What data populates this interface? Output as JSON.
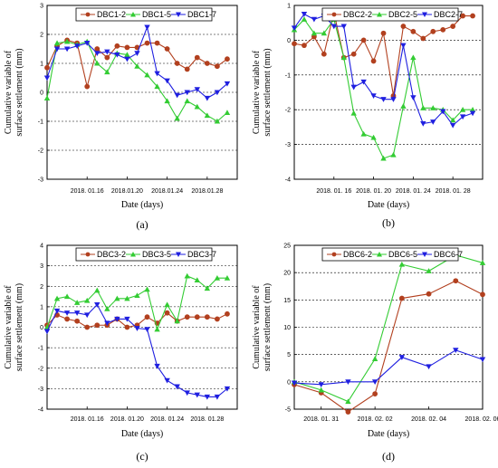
{
  "chart_data": [
    {
      "type": "line",
      "panel_label": "(a)",
      "xlabel": "Date (days)",
      "ylabel": "Cumulative variable of surface settlement (mm)",
      "ylim": [
        -3,
        3
      ],
      "yticks": [
        -3,
        -2,
        -1,
        0,
        1,
        2,
        3
      ],
      "xlim": [
        0,
        19
      ],
      "xticks": [
        {
          "x": 4,
          "label": "2018. 01.16"
        },
        {
          "x": 8,
          "label": "2018.01.20"
        },
        {
          "x": 12,
          "label": "2018.01.24"
        },
        {
          "x": 16,
          "label": "2018.01.28"
        }
      ],
      "grid": "horizontal-dashed",
      "legend": "top",
      "x": [
        0,
        1,
        2,
        3,
        4,
        5,
        6,
        7,
        8,
        9,
        10,
        11,
        12,
        13,
        14,
        15,
        16,
        17,
        18
      ],
      "series": [
        {
          "name": "DBC1-2",
          "color": "#b2401f",
          "marker": "circle",
          "values": [
            0.85,
            1.6,
            1.8,
            1.7,
            0.2,
            1.5,
            1.2,
            1.6,
            1.55,
            1.55,
            1.7,
            1.7,
            1.5,
            1.0,
            0.8,
            1.2,
            1.0,
            0.9,
            1.15
          ]
        },
        {
          "name": "DBC1-5",
          "color": "#33cc33",
          "marker": "triangle-up",
          "values": [
            -0.2,
            1.7,
            1.75,
            1.65,
            1.75,
            1.0,
            0.7,
            1.35,
            1.3,
            0.9,
            0.6,
            0.2,
            -0.3,
            -0.9,
            -0.3,
            -0.5,
            -0.8,
            -1.0,
            -0.7
          ]
        },
        {
          "name": "DBC1-7",
          "color": "#1f1fe0",
          "marker": "triangle-down",
          "values": [
            0.5,
            1.5,
            1.5,
            1.6,
            1.7,
            1.35,
            1.4,
            1.3,
            1.15,
            1.35,
            2.25,
            0.65,
            0.4,
            -0.1,
            0.0,
            0.1,
            -0.2,
            0.0,
            0.3
          ]
        }
      ]
    },
    {
      "type": "line",
      "panel_label": "(b)",
      "xlabel": "Date (days)",
      "ylabel": "Cumulative variable of surface settlement (mm)",
      "ylim": [
        -4,
        1
      ],
      "yticks": [
        -4,
        -3,
        -2,
        -1,
        0,
        1
      ],
      "xlim": [
        0,
        19
      ],
      "xticks": [
        {
          "x": 4,
          "label": "2018. 01. 16"
        },
        {
          "x": 8,
          "label": "2018. 01. 20"
        },
        {
          "x": 12,
          "label": "2018. 01. 24"
        },
        {
          "x": 16,
          "label": "2018. 01. 28"
        }
      ],
      "grid": "horizontal-dashed",
      "legend": "top",
      "x": [
        0,
        1,
        2,
        3,
        4,
        5,
        6,
        7,
        8,
        9,
        10,
        11,
        12,
        13,
        14,
        15,
        16,
        17,
        18
      ],
      "series": [
        {
          "name": "DBC2-2",
          "color": "#b2401f",
          "marker": "circle",
          "values": [
            -0.1,
            -0.15,
            0.1,
            -0.4,
            0.8,
            -0.5,
            -0.4,
            0.0,
            -0.6,
            0.2,
            -1.6,
            0.4,
            0.25,
            0.05,
            0.25,
            0.3,
            0.4,
            0.7,
            0.7
          ]
        },
        {
          "name": "DBC2-5",
          "color": "#33cc33",
          "marker": "triangle-up",
          "values": [
            0.3,
            0.6,
            0.2,
            0.2,
            0.6,
            -0.5,
            -2.1,
            -2.7,
            -2.8,
            -3.4,
            -3.3,
            -1.9,
            -0.5,
            -1.95,
            -1.95,
            -2.0,
            -2.3,
            -2.0,
            -2.0
          ]
        },
        {
          "name": "DBC2-7",
          "color": "#1f1fe0",
          "marker": "triangle-down",
          "values": [
            0.35,
            0.75,
            0.6,
            0.7,
            0.4,
            0.4,
            -1.35,
            -1.2,
            -1.6,
            -1.7,
            -1.7,
            -0.15,
            -1.65,
            -2.4,
            -2.35,
            -2.05,
            -2.45,
            -2.2,
            -2.1
          ]
        }
      ]
    },
    {
      "type": "line",
      "panel_label": "(c)",
      "xlabel": "Date (days)",
      "ylabel": "Cumulative variable of surface settlement (mm)",
      "ylim": [
        -4,
        4
      ],
      "yticks": [
        -4,
        -3,
        -2,
        -1,
        0,
        1,
        2,
        3,
        4
      ],
      "xlim": [
        0,
        19
      ],
      "xticks": [
        {
          "x": 4,
          "label": "2018. 01.16"
        },
        {
          "x": 8,
          "label": "2018. 01.20"
        },
        {
          "x": 12,
          "label": "2018. 01.24"
        },
        {
          "x": 16,
          "label": "2018. 01.28"
        }
      ],
      "grid": "horizontal-dashed",
      "legend": "top",
      "x": [
        0,
        1,
        2,
        3,
        4,
        5,
        6,
        7,
        8,
        9,
        10,
        11,
        12,
        13,
        14,
        15,
        16,
        17,
        18
      ],
      "series": [
        {
          "name": "DBC3-2",
          "color": "#b2401f",
          "marker": "circle",
          "values": [
            0.1,
            0.6,
            0.4,
            0.3,
            0.0,
            0.1,
            0.1,
            0.4,
            0.0,
            0.1,
            0.5,
            0.2,
            0.7,
            0.3,
            0.5,
            0.5,
            0.5,
            0.4,
            0.65
          ]
        },
        {
          "name": "DBC3-5",
          "color": "#33cc33",
          "marker": "triangle-up",
          "values": [
            0.0,
            1.4,
            1.5,
            1.2,
            1.3,
            1.8,
            0.9,
            1.4,
            1.4,
            1.55,
            1.85,
            -0.1,
            1.1,
            0.3,
            2.5,
            2.3,
            1.9,
            2.4,
            2.4
          ]
        },
        {
          "name": "DBC3-7",
          "color": "#1f1fe0",
          "marker": "triangle-down",
          "values": [
            -0.2,
            0.8,
            0.7,
            0.7,
            0.6,
            1.1,
            0.2,
            0.4,
            0.4,
            -0.05,
            -0.1,
            -1.9,
            -2.6,
            -2.9,
            -3.2,
            -3.3,
            -3.4,
            -3.4,
            -3.0
          ]
        }
      ]
    },
    {
      "type": "line",
      "panel_label": "(d)",
      "xlabel": "Date (days)",
      "ylabel": "Cumulative variable of surface settlement (mm)",
      "ylim": [
        -5,
        25
      ],
      "yticks": [
        -5,
        0,
        5,
        10,
        15,
        20,
        25
      ],
      "xlim": [
        0,
        10.5
      ],
      "xticks": [
        {
          "x": 1.5,
          "label": "2018. 01. 31"
        },
        {
          "x": 4.5,
          "label": "2018. 02. 02"
        },
        {
          "x": 7.5,
          "label": "2018. 02. 04"
        },
        {
          "x": 10.5,
          "label": "2018. 02. 06"
        }
      ],
      "grid": "horizontal-dashed",
      "legend": "top",
      "x": [
        0,
        1.5,
        3,
        4.5,
        6,
        7.5,
        9,
        10.5
      ],
      "series": [
        {
          "name": "DBC6-2",
          "color": "#b2401f",
          "marker": "circle",
          "values": [
            -0.5,
            -2.0,
            -5.5,
            -2.2,
            15.3,
            16.1,
            18.5,
            16.0
          ]
        },
        {
          "name": "DBC6-5",
          "color": "#33cc33",
          "marker": "triangle-up",
          "values": [
            0.0,
            -1.5,
            -3.6,
            4.2,
            21.5,
            20.3,
            23.2,
            21.8
          ]
        },
        {
          "name": "DBC6-7",
          "color": "#1f1fe0",
          "marker": "triangle-down",
          "values": [
            -0.2,
            -0.5,
            0.0,
            0.0,
            4.5,
            2.8,
            5.8,
            4.1
          ]
        }
      ]
    }
  ]
}
